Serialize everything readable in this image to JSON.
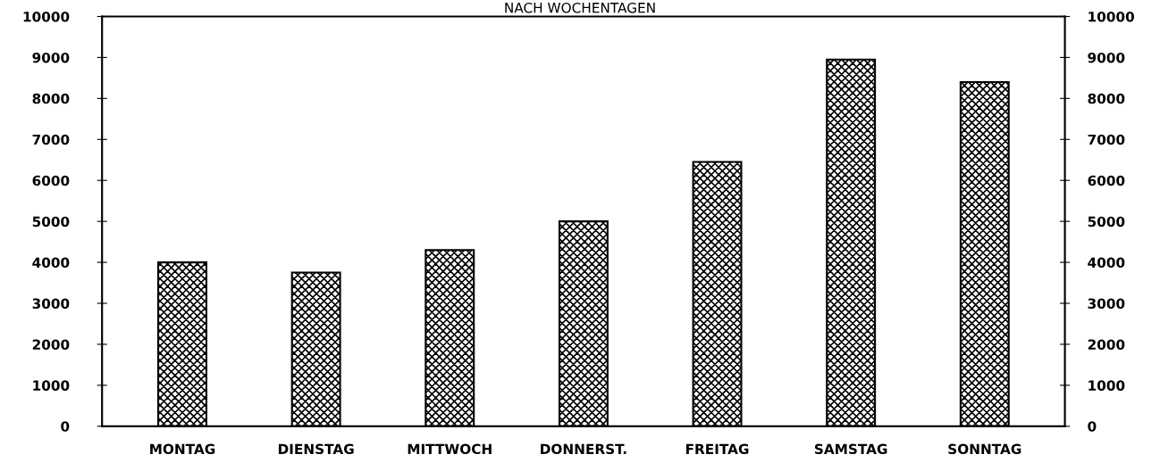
{
  "chart_data": {
    "type": "bar",
    "title": "NACH WOCHENTAGEN",
    "categories": [
      "MONTAG",
      "DIENSTAG",
      "MITTWOCH",
      "DONNERST.",
      "FREITAG",
      "SAMSTAG",
      "SONNTAG"
    ],
    "values": [
      4000,
      3750,
      4300,
      5000,
      6450,
      8950,
      8400
    ],
    "color": "#000000",
    "ylim": [
      0,
      10000
    ],
    "yticks": [
      0,
      1000,
      2000,
      3000,
      4000,
      5000,
      6000,
      7000,
      8000,
      9000,
      10000
    ],
    "y2lim": [
      0,
      10000
    ],
    "y2ticks": [
      0,
      1000,
      2000,
      3000,
      4000,
      5000,
      6000,
      7000,
      8000,
      9000,
      10000
    ],
    "grid": false,
    "legend": false
  }
}
